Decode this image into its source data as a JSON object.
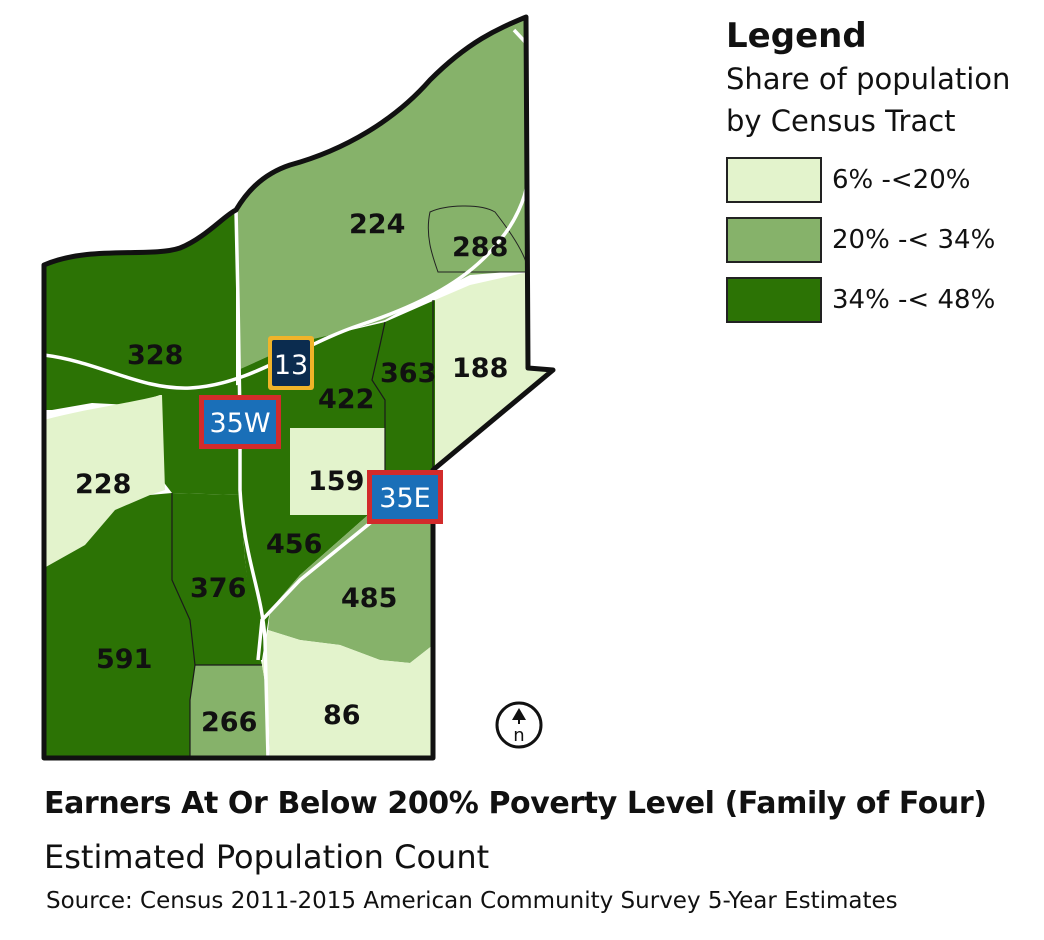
{
  "legend": {
    "title": "Legend",
    "subtitle_line1": "Share of population",
    "subtitle_line2": "by Census Tract",
    "items": [
      {
        "label": "6% -<20%",
        "color": "#e3f3cc"
      },
      {
        "label": "20% -< 34%",
        "color": "#86b26a"
      },
      {
        "label": "34% -< 48%",
        "color": "#2c7305"
      }
    ]
  },
  "tracts": [
    {
      "label": "224",
      "class": "20% -< 34%"
    },
    {
      "label": "288",
      "class": "20% -< 34%"
    },
    {
      "label": "328",
      "class": "34% -< 48%"
    },
    {
      "label": "363",
      "class": "34% -< 48%"
    },
    {
      "label": "188",
      "class": "6% -<20%"
    },
    {
      "label": "422",
      "class": "34% -< 48%"
    },
    {
      "label": "228",
      "class": "6% -<20%"
    },
    {
      "label": "159",
      "class": "6% -<20%"
    },
    {
      "label": "456",
      "class": "34% -< 48%"
    },
    {
      "label": "376",
      "class": "34% -< 48%"
    },
    {
      "label": "485",
      "class": "20% -< 34%"
    },
    {
      "label": "591",
      "class": "34% -< 48%"
    },
    {
      "label": "266",
      "class": "20% -< 34%"
    },
    {
      "label": "86",
      "class": "6% -<20%"
    }
  ],
  "highways": {
    "hw13": {
      "label": "13",
      "bg": "#0b2c4f",
      "border": "#f0b429"
    },
    "hw35w": {
      "label": "35W",
      "bg": "#1a6fb8",
      "border": "#d22b2b"
    },
    "hw35e": {
      "label": "35E",
      "bg": "#1a6fb8",
      "border": "#d22b2b"
    }
  },
  "north_arrow": {
    "label": "n",
    "icon": "north-arrow-icon"
  },
  "title": "Earners At Or Below 200% Poverty Level (Family of Four)",
  "subtitle": "Estimated Population Count",
  "source": "Source: Census 2011-2015 American Community Survey 5-Year Estimates"
}
